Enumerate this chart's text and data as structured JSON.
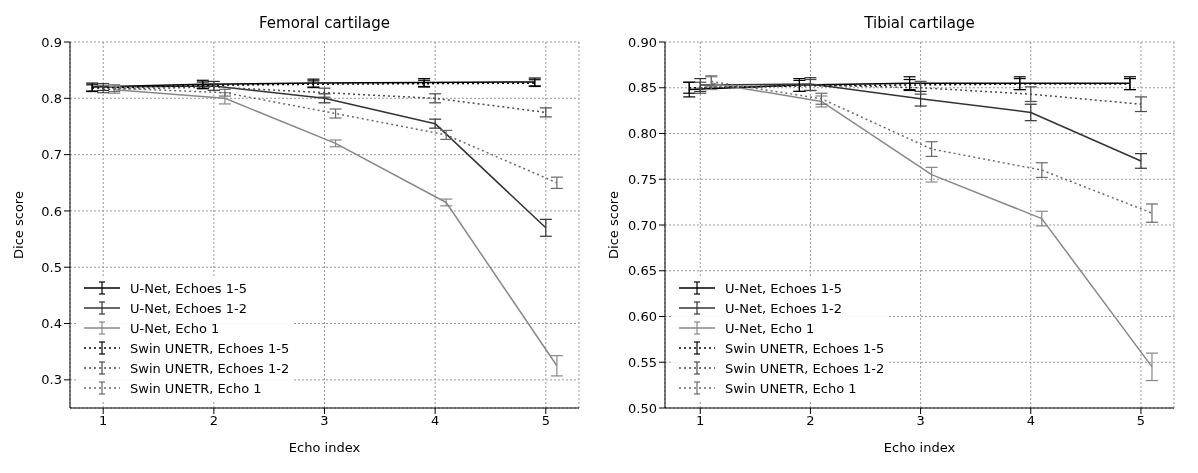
{
  "chart_data": [
    {
      "type": "line",
      "title": "Femoral cartilage",
      "xlabel": "Echo index",
      "ylabel": "Dice score",
      "xlim": [
        0.7,
        5.3
      ],
      "ylim": [
        0.25,
        0.9
      ],
      "xticks": [
        1,
        2,
        3,
        4,
        5
      ],
      "yticks": [
        0.3,
        0.4,
        0.5,
        0.6,
        0.7,
        0.8,
        0.9
      ],
      "grid": true,
      "legend": "bottom left",
      "marker": "none",
      "series": [
        {
          "name": "U-Net, Echoes 1-5",
          "color": "#000000",
          "line_style": "solid",
          "x": [
            0.9,
            1.9,
            2.9,
            3.9,
            4.9
          ],
          "values": [
            0.82,
            0.825,
            0.827,
            0.828,
            0.829
          ],
          "errors": [
            0.007,
            0.007,
            0.007,
            0.007,
            0.007
          ]
        },
        {
          "name": "U-Net, Echoes 1-2",
          "color": "#333333",
          "line_style": "solid",
          "x": [
            1,
            2,
            3,
            4,
            5
          ],
          "values": [
            0.82,
            0.822,
            0.8,
            0.755,
            0.57
          ],
          "errors": [
            0.006,
            0.008,
            0.008,
            0.008,
            0.015
          ]
        },
        {
          "name": "U-Net, Echo 1",
          "color": "#888888",
          "line_style": "solid",
          "x": [
            1.1,
            2.1,
            3.1,
            4.1,
            5.1
          ],
          "values": [
            0.815,
            0.8,
            0.72,
            0.615,
            0.325
          ],
          "errors": [
            0.006,
            0.01,
            0.006,
            0.006,
            0.018
          ]
        },
        {
          "name": "Swin UNETR, Echoes 1-5",
          "color": "#000000",
          "line_style": "dotted",
          "x": [
            0.9,
            1.9,
            2.9,
            3.9,
            4.9
          ],
          "values": [
            0.818,
            0.823,
            0.825,
            0.826,
            0.827
          ],
          "errors": [
            0.006,
            0.006,
            0.006,
            0.006,
            0.006
          ]
        },
        {
          "name": "Swin UNETR, Echoes 1-2",
          "color": "#4a4a4a",
          "line_style": "dotted",
          "x": [
            1,
            2,
            3,
            4,
            5
          ],
          "values": [
            0.816,
            0.82,
            0.81,
            0.8,
            0.775
          ],
          "errors": [
            0.006,
            0.006,
            0.008,
            0.008,
            0.008
          ]
        },
        {
          "name": "Swin UNETR, Echo 1",
          "color": "#6a6a6a",
          "line_style": "dotted",
          "x": [
            1.1,
            2.1,
            3.1,
            4.1,
            5.1
          ],
          "values": [
            0.818,
            0.81,
            0.773,
            0.735,
            0.65
          ],
          "errors": [
            0.006,
            0.006,
            0.008,
            0.008,
            0.01
          ]
        }
      ]
    },
    {
      "type": "line",
      "title": "Tibial cartilage",
      "xlabel": "Echo index",
      "ylabel": "Dice score",
      "xlim": [
        0.68,
        5.3
      ],
      "ylim": [
        0.5,
        0.9
      ],
      "xticks": [
        1,
        2,
        3,
        4,
        5
      ],
      "yticks": [
        {
          "value": 0.5,
          "label": "0.50"
        },
        {
          "value": 0.55,
          "label": "0.55"
        },
        {
          "value": 0.6,
          "label": "0.60"
        },
        {
          "value": 0.65,
          "label": "0.65"
        },
        {
          "value": 0.7,
          "label": "0.70"
        },
        {
          "value": 0.75,
          "label": "0.75"
        },
        {
          "value": 0.8,
          "label": "0.80"
        },
        {
          "value": 0.85,
          "label": "0.85"
        },
        {
          "value": 0.9,
          "label": "0.90"
        }
      ],
      "grid": true,
      "legend": "bottom left",
      "marker": "none",
      "series": [
        {
          "name": "U-Net, Echoes 1-5",
          "color": "#000000",
          "line_style": "solid",
          "x": [
            0.9,
            1.9,
            2.9,
            3.9,
            4.9
          ],
          "values": [
            0.848,
            0.853,
            0.855,
            0.855,
            0.855
          ],
          "errors": [
            0.008,
            0.007,
            0.007,
            0.007,
            0.007
          ]
        },
        {
          "name": "U-Net, Echoes 1-2",
          "color": "#333333",
          "line_style": "solid",
          "x": [
            1,
            2,
            3,
            4,
            5
          ],
          "values": [
            0.853,
            0.854,
            0.838,
            0.823,
            0.77
          ],
          "errors": [
            0.007,
            0.007,
            0.008,
            0.009,
            0.008
          ]
        },
        {
          "name": "U-Net, Echo 1",
          "color": "#888888",
          "line_style": "solid",
          "x": [
            1.1,
            2.1,
            3.1,
            4.1,
            5.1
          ],
          "values": [
            0.855,
            0.835,
            0.755,
            0.707,
            0.545
          ],
          "errors": [
            0.007,
            0.006,
            0.008,
            0.008,
            0.015
          ]
        },
        {
          "name": "Swin UNETR, Echoes 1-5",
          "color": "#000000",
          "line_style": "dotted",
          "x": [
            0.9,
            1.9,
            2.9,
            3.9,
            4.9
          ],
          "values": [
            0.85,
            0.852,
            0.853,
            0.854,
            0.854
          ],
          "errors": [
            0.006,
            0.006,
            0.006,
            0.006,
            0.006
          ]
        },
        {
          "name": "Swin UNETR, Echoes 1-2",
          "color": "#4a4a4a",
          "line_style": "dotted",
          "x": [
            1,
            2,
            3,
            4,
            5
          ],
          "values": [
            0.85,
            0.853,
            0.85,
            0.843,
            0.832
          ],
          "errors": [
            0.006,
            0.006,
            0.007,
            0.008,
            0.008
          ]
        },
        {
          "name": "Swin UNETR, Echo 1",
          "color": "#6a6a6a",
          "line_style": "dotted",
          "x": [
            1.1,
            2.1,
            3.1,
            4.1,
            5.1
          ],
          "values": [
            0.857,
            0.838,
            0.783,
            0.76,
            0.713
          ],
          "errors": [
            0.006,
            0.006,
            0.008,
            0.008,
            0.01
          ]
        }
      ]
    }
  ]
}
